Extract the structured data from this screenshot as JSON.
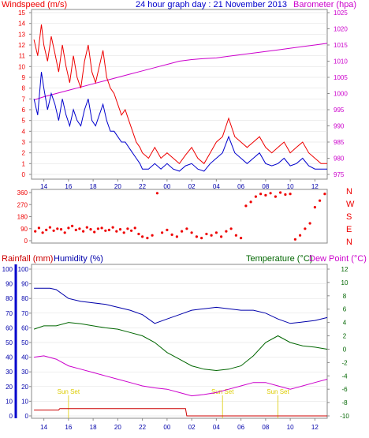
{
  "chart_data": [
    {
      "type": "line",
      "title": "24 hour graph day : 21 November 2013",
      "ylabel_left": "Windspeed (m/s)",
      "ylabel_right": "Barometer (hpa)",
      "x_ticks": [
        "14",
        "16",
        "18",
        "20",
        "22",
        "00",
        "02",
        "04",
        "06",
        "08",
        "10",
        "12",
        "14",
        "16",
        "18",
        "20",
        "22",
        "00"
      ],
      "xlim": [
        13,
        37
      ],
      "ylim_left": [
        0,
        15
      ],
      "ylim_right": [
        975,
        1025
      ],
      "y_ticks_left": [
        0,
        1,
        2,
        3,
        4,
        5,
        6,
        7,
        8,
        9,
        10,
        11,
        12,
        13,
        14,
        15
      ],
      "y_ticks_right": [
        975,
        980,
        985,
        990,
        995,
        1000,
        1005,
        1010,
        1015,
        1020,
        1025
      ],
      "series": [
        {
          "name": "Windspeed gust",
          "color": "#ee0000",
          "axis": "left",
          "x": [
            13.2,
            13.5,
            13.8,
            14.0,
            14.3,
            14.6,
            14.9,
            15.2,
            15.5,
            15.8,
            16.1,
            16.4,
            16.7,
            17.0,
            17.3,
            17.6,
            17.9,
            18.2,
            18.5,
            18.8,
            19.1,
            19.4,
            19.7,
            20.0,
            20.3,
            20.6,
            20.9,
            21.2,
            21.5,
            21.8,
            22.0,
            22.5,
            23.0,
            23.5,
            24.0,
            24.5,
            25.0,
            25.5,
            26.0,
            26.5,
            27.0,
            27.5,
            28.0,
            28.5,
            29.0,
            29.5,
            30.0,
            30.5,
            31.0,
            31.5,
            32.0,
            32.5,
            33.0,
            33.5,
            34.0,
            34.5,
            35.0,
            35.5,
            36.0,
            36.5,
            37.0
          ],
          "values": [
            12.5,
            11.0,
            13.9,
            12.0,
            10.5,
            12.8,
            11.2,
            9.5,
            12.0,
            10.0,
            8.5,
            11.0,
            9.0,
            8.0,
            10.5,
            12.0,
            9.5,
            8.5,
            10.0,
            11.5,
            9.0,
            8.0,
            7.5,
            6.5,
            5.5,
            6.0,
            5.0,
            4.0,
            3.0,
            2.5,
            2.0,
            1.5,
            2.5,
            1.5,
            2.0,
            1.5,
            1.0,
            1.8,
            2.5,
            1.5,
            1.0,
            2.0,
            3.0,
            3.5,
            5.2,
            3.5,
            3.0,
            2.5,
            3.0,
            3.5,
            2.5,
            2.0,
            2.5,
            3.0,
            2.0,
            2.5,
            3.0,
            2.0,
            1.5,
            1.0,
            1.0
          ]
        },
        {
          "name": "Windspeed average",
          "color": "#0000cc",
          "axis": "left",
          "x": [
            13.2,
            13.5,
            13.8,
            14.0,
            14.3,
            14.6,
            14.9,
            15.2,
            15.5,
            15.8,
            16.1,
            16.4,
            16.7,
            17.0,
            17.3,
            17.6,
            17.9,
            18.2,
            18.5,
            18.8,
            19.1,
            19.4,
            19.7,
            20.0,
            20.3,
            20.6,
            20.9,
            21.2,
            21.5,
            21.8,
            22.0,
            22.5,
            23.0,
            23.5,
            24.0,
            24.5,
            25.0,
            25.5,
            26.0,
            26.5,
            27.0,
            27.5,
            28.0,
            28.5,
            29.0,
            29.5,
            30.0,
            30.5,
            31.0,
            31.5,
            32.0,
            32.5,
            33.0,
            33.5,
            34.0,
            34.5,
            35.0,
            35.5,
            36.0,
            36.5,
            37.0
          ],
          "values": [
            7.0,
            5.5,
            9.5,
            8.0,
            6.0,
            7.5,
            6.5,
            5.0,
            7.0,
            5.5,
            4.5,
            6.0,
            5.0,
            4.5,
            6.0,
            7.0,
            5.0,
            4.5,
            5.5,
            6.5,
            5.0,
            4.0,
            4.0,
            3.5,
            3.0,
            3.0,
            2.5,
            2.0,
            1.5,
            1.0,
            0.5,
            0.5,
            1.0,
            0.5,
            1.0,
            0.5,
            0.3,
            0.8,
            1.0,
            0.5,
            0.3,
            1.0,
            1.5,
            2.0,
            3.5,
            2.0,
            1.5,
            1.0,
            1.5,
            2.0,
            1.0,
            0.8,
            1.0,
            1.5,
            0.8,
            1.0,
            1.5,
            0.8,
            0.5,
            0.5,
            0.5
          ]
        },
        {
          "name": "Barometer",
          "color": "#cc00cc",
          "axis": "right",
          "x": [
            13.2,
            14,
            15,
            16,
            17,
            18,
            19,
            20,
            21,
            22,
            23,
            24,
            25,
            26,
            27,
            28,
            29,
            30,
            31,
            32,
            33,
            34,
            35,
            36,
            37
          ],
          "values": [
            998,
            999,
            1000,
            1001,
            1002,
            1003,
            1004,
            1005,
            1006,
            1007,
            1008,
            1009,
            1010,
            1010.5,
            1010.8,
            1011,
            1011.5,
            1012,
            1012.5,
            1013,
            1013.5,
            1014,
            1014.5,
            1015,
            1015.5
          ]
        }
      ]
    },
    {
      "type": "scatter",
      "ylabel_right": [
        "N",
        "W",
        "S",
        "E",
        "N"
      ],
      "xlim": [
        13,
        37
      ],
      "ylim": [
        0,
        360
      ],
      "y_ticks": [
        0,
        90,
        180,
        270,
        360
      ],
      "series": [
        {
          "name": "Wind direction",
          "color": "#ee0000",
          "x": [
            13.3,
            13.6,
            13.9,
            14.2,
            14.5,
            14.8,
            15.1,
            15.4,
            15.7,
            16.0,
            16.3,
            16.6,
            16.9,
            17.2,
            17.5,
            17.8,
            18.1,
            18.4,
            18.7,
            19.0,
            19.3,
            19.6,
            19.9,
            20.2,
            20.5,
            20.8,
            21.1,
            21.4,
            21.7,
            22.0,
            22.4,
            22.8,
            23.2,
            23.6,
            24.0,
            24.4,
            24.8,
            25.2,
            25.6,
            26.0,
            26.4,
            26.8,
            27.2,
            27.6,
            28.0,
            28.4,
            28.8,
            29.2,
            29.6,
            30.0,
            30.4,
            30.8,
            31.2,
            31.6,
            32.0,
            32.4,
            32.8,
            33.2,
            33.6,
            34.0,
            34.4,
            34.8,
            35.2,
            35.6,
            36.0,
            36.4,
            36.8
          ],
          "values": [
            70,
            95,
            60,
            80,
            100,
            75,
            90,
            85,
            60,
            95,
            110,
            80,
            90,
            70,
            100,
            85,
            65,
            90,
            95,
            75,
            80,
            100,
            70,
            85,
            60,
            90,
            75,
            95,
            50,
            30,
            20,
            40,
            355,
            60,
            80,
            45,
            30,
            70,
            90,
            60,
            30,
            20,
            50,
            40,
            60,
            30,
            70,
            90,
            40,
            20,
            260,
            290,
            330,
            350,
            340,
            355,
            330,
            360,
            345,
            350,
            10,
            40,
            90,
            130,
            250,
            300,
            350
          ]
        }
      ]
    },
    {
      "type": "line",
      "ylabel_left_outer": "Rainfall (mm)",
      "ylabel_left_inner": "Humidity (%)",
      "ylabel_right_inner": "Temperature (°C)",
      "ylabel_right_outer": "Dew Point (°C)",
      "annotations": [
        "Sun Set",
        "Sun Set",
        "Sun Set"
      ],
      "xlim": [
        13,
        37
      ],
      "ylim_humidity": [
        0,
        100
      ],
      "ylim_temperature": [
        -10,
        12
      ],
      "y_ticks_humidity": [
        0,
        10,
        20,
        30,
        40,
        50,
        60,
        70,
        80,
        90,
        100
      ],
      "y_ticks_temperature": [
        -10,
        -8,
        -6,
        -4,
        -2,
        0,
        2,
        4,
        6,
        8,
        10,
        12
      ],
      "series": [
        {
          "name": "Humidity",
          "color": "#0000aa",
          "axis": "humidity",
          "x": [
            13.2,
            14.5,
            15.0,
            16.0,
            17.0,
            18.0,
            19.0,
            20.0,
            21.0,
            22.0,
            23.0,
            24.0,
            25.0,
            26.0,
            27.0,
            28.0,
            29.0,
            30.0,
            31.0,
            32.0,
            33.0,
            34.0,
            35.0,
            36.0,
            37.0
          ],
          "values": [
            87,
            87,
            86,
            80,
            78,
            77,
            76,
            74,
            72,
            69,
            63,
            66,
            69,
            72,
            73,
            74,
            73,
            72,
            72,
            70,
            66,
            63,
            64,
            65,
            67
          ]
        },
        {
          "name": "Temperature",
          "color": "#006600",
          "axis": "temperature",
          "x": [
            13.2,
            14.0,
            15.0,
            16.0,
            17.0,
            18.0,
            19.0,
            20.0,
            21.0,
            22.0,
            23.0,
            24.0,
            25.0,
            26.0,
            27.0,
            28.0,
            29.0,
            30.0,
            31.0,
            32.0,
            33.0,
            34.0,
            35.0,
            36.0,
            37.0
          ],
          "values": [
            3.0,
            3.5,
            3.5,
            4.0,
            3.8,
            3.5,
            3.2,
            3.0,
            2.5,
            2.0,
            1.0,
            -0.5,
            -1.5,
            -2.5,
            -3.0,
            -3.2,
            -3.0,
            -2.5,
            -1.0,
            1.0,
            2.0,
            1.0,
            0.5,
            0.3,
            0.0
          ]
        },
        {
          "name": "Dew Point",
          "color": "#cc00cc",
          "axis": "temperature",
          "x": [
            13.2,
            14.0,
            15.0,
            16.0,
            17.0,
            18.0,
            19.0,
            20.0,
            21.0,
            22.0,
            23.0,
            24.0,
            25.0,
            26.0,
            27.0,
            28.0,
            29.0,
            30.0,
            31.0,
            32.0,
            33.0,
            34.0,
            35.0,
            36.0,
            37.0
          ],
          "values": [
            -1.2,
            -1.0,
            -1.5,
            -2.5,
            -3.0,
            -3.5,
            -4.0,
            -4.5,
            -5.0,
            -5.5,
            -5.8,
            -6.0,
            -6.5,
            -7.0,
            -6.8,
            -6.5,
            -6.0,
            -5.5,
            -5.0,
            -5.0,
            -5.5,
            -6.0,
            -5.5,
            -5.0,
            -4.5
          ]
        },
        {
          "name": "Rainfall",
          "color": "#cc0000",
          "axis": "humidity",
          "x": [
            13.2,
            15.2,
            15.3,
            25.5,
            25.6,
            37.0
          ],
          "values": [
            4,
            4,
            5,
            5,
            0,
            0
          ]
        }
      ]
    }
  ],
  "labels": {
    "p1_left": "Windspeed (m/s)",
    "p1_title": "24 hour graph day : 21 November 2013",
    "p1_right": "Barometer (hpa)",
    "p3_left_outer": "Rainfall (mm)",
    "p3_left_inner": "Humidity (%)",
    "p3_right_inner": "Temperature (°C)",
    "p3_right_outer": "Dew Point (°C)"
  },
  "colors": {
    "red": "#ee0000",
    "blue": "#0000cc",
    "magenta": "#cc00cc",
    "green": "#006600",
    "yellow": "#ddcc00"
  }
}
